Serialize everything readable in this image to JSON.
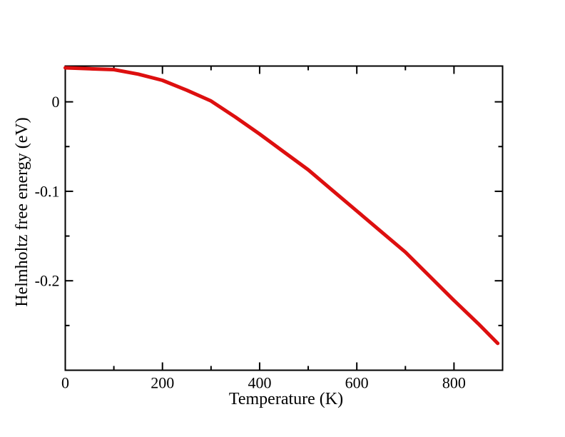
{
  "chart_data": {
    "type": "line",
    "title": "",
    "xlabel": "Temperature (K)",
    "ylabel": "Helmholtz free energy (eV)",
    "xlim": [
      0,
      900
    ],
    "ylim": [
      -0.3,
      0.04
    ],
    "x_ticks": [
      0,
      200,
      400,
      600,
      800
    ],
    "x_tick_labels": [
      "0",
      "200",
      "400",
      "600",
      "800"
    ],
    "x_minor_ticks": [
      100,
      300,
      500,
      700
    ],
    "y_ticks": [
      0,
      -0.1,
      -0.2
    ],
    "y_tick_labels": [
      "0",
      "-0.1",
      "-0.2"
    ],
    "y_minor_ticks": [
      -0.05,
      -0.15,
      -0.25
    ],
    "grid": false,
    "legend": null,
    "background_color": "#ffffff",
    "axis_color": "#000000",
    "series": [
      {
        "name": "helmholtz-free-energy",
        "color": "#dd0f0f",
        "line_width": 5,
        "points": [
          [
            0,
            0.038
          ],
          [
            50,
            0.037
          ],
          [
            100,
            0.036
          ],
          [
            150,
            0.031
          ],
          [
            200,
            0.024
          ],
          [
            250,
            0.013
          ],
          [
            300,
            0.001
          ],
          [
            350,
            -0.017
          ],
          [
            400,
            -0.036
          ],
          [
            450,
            -0.056
          ],
          [
            500,
            -0.076
          ],
          [
            550,
            -0.099
          ],
          [
            600,
            -0.122
          ],
          [
            650,
            -0.145
          ],
          [
            700,
            -0.168
          ],
          [
            750,
            -0.195
          ],
          [
            800,
            -0.222
          ],
          [
            850,
            -0.248
          ],
          [
            890,
            -0.27
          ]
        ]
      }
    ]
  }
}
